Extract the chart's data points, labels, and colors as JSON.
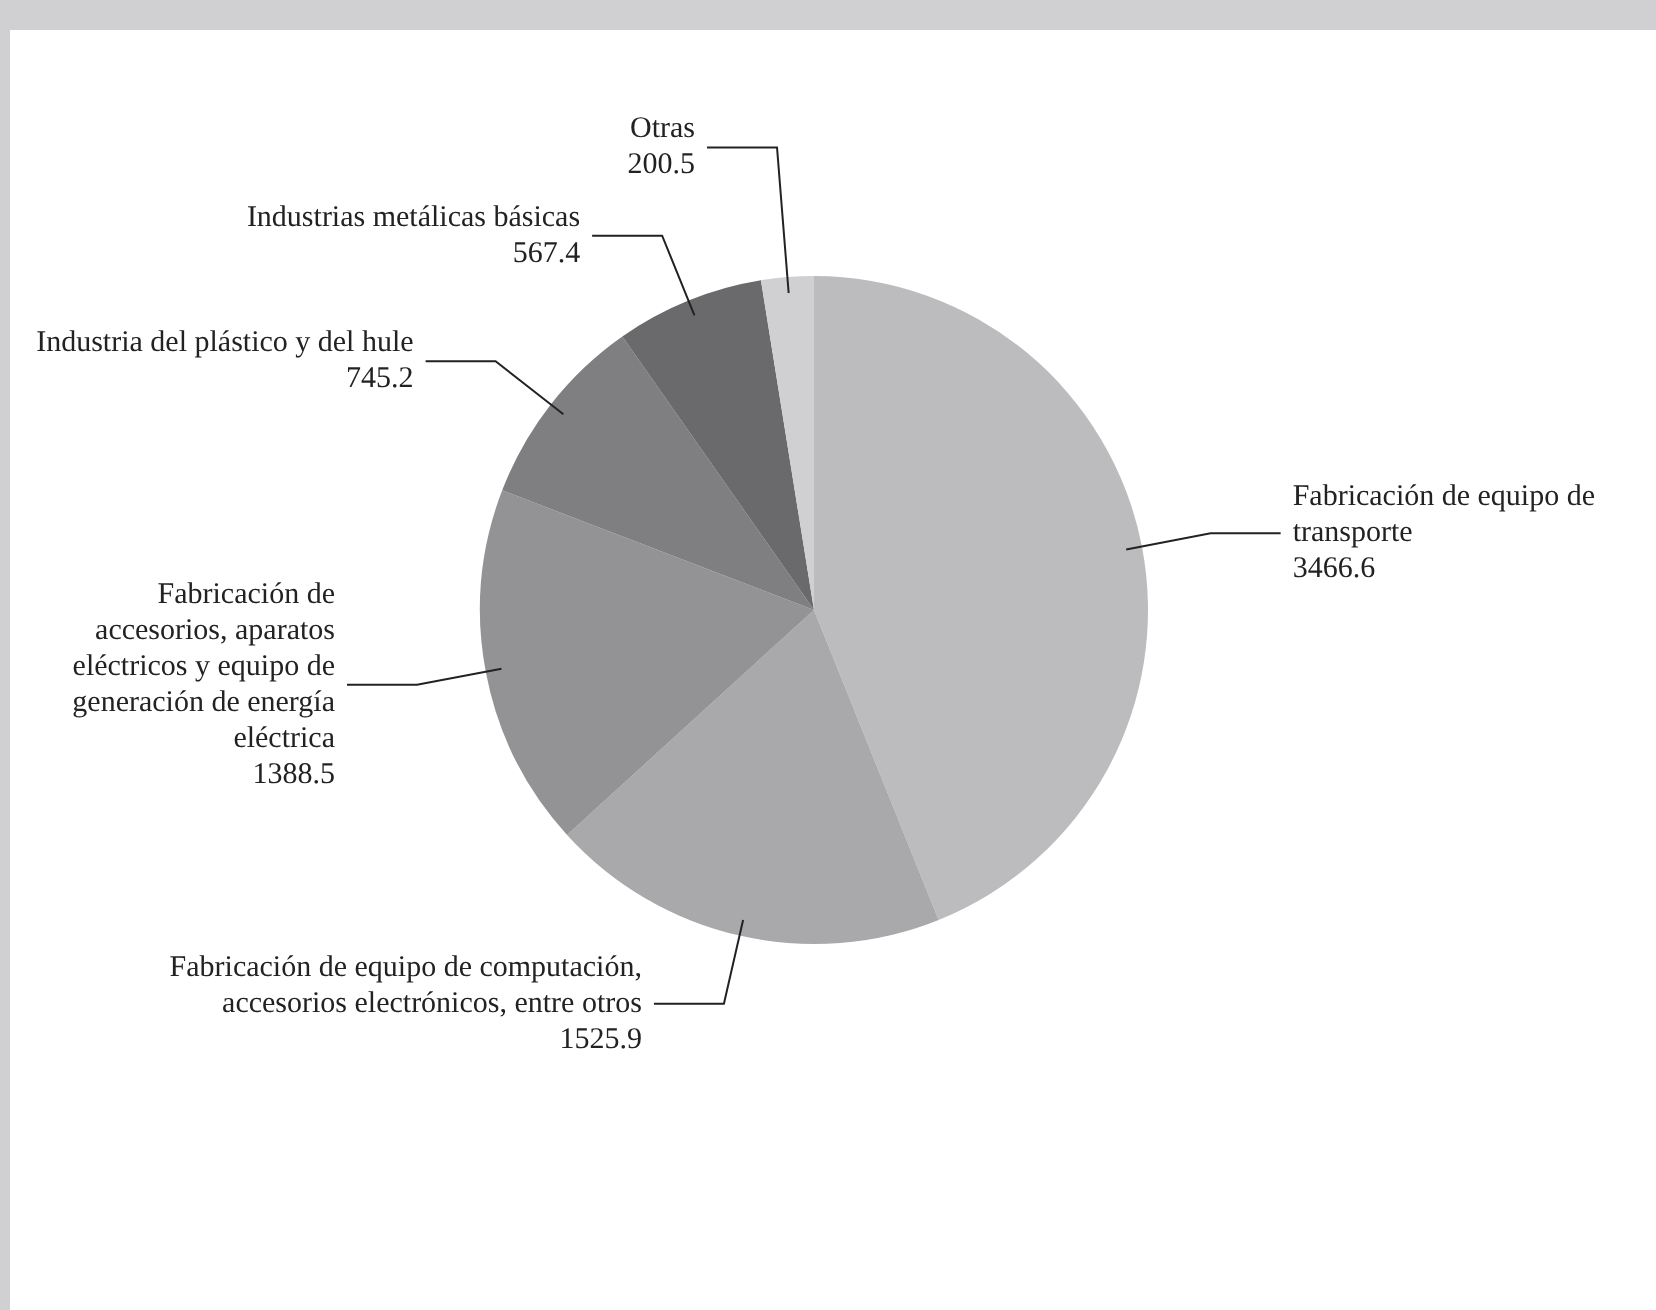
{
  "chart_data": {
    "type": "pie",
    "categories": [
      "Fabricación de equipo de transporte",
      "Fabricación de equipo de computación, accesorios electrónicos, entre otros",
      "Fabricación de accesorios, aparatos eléctricos y equipo de generación de energía eléctrica",
      "Industria del plástico y del hule",
      "Industrias metálicas básicas",
      "Otras"
    ],
    "values": [
      3466.6,
      1525.9,
      1388.5,
      745.2,
      567.4,
      200.5
    ],
    "colors": [
      "#bcbcbf",
      "#a9a9ac",
      "#939396",
      "#7f7f82",
      "#6a6a6d",
      "#d0d0d2"
    ],
    "data_labels": true,
    "legend": false
  }
}
